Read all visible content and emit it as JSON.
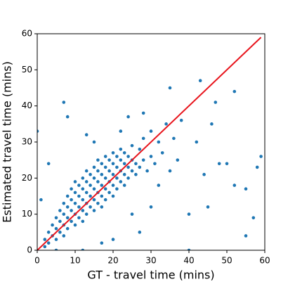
{
  "chart_data": {
    "type": "scatter",
    "xlabel": "GT - travel time (mins)",
    "ylabel": "Estimated travel time (mins)",
    "xlim": [
      0,
      60
    ],
    "ylim": [
      0,
      60
    ],
    "xticks": [
      0,
      10,
      20,
      30,
      40,
      50,
      60
    ],
    "yticks": [
      0,
      10,
      20,
      30,
      40,
      50,
      60
    ],
    "series": [
      {
        "type": "scatter",
        "color": "#1f77b4",
        "x": [
          2,
          3,
          3,
          4,
          4,
          5,
          5,
          5,
          6,
          6,
          6,
          7,
          7,
          7,
          7,
          8,
          8,
          8,
          8,
          9,
          9,
          9,
          9,
          10,
          10,
          10,
          10,
          10,
          11,
          11,
          11,
          11,
          12,
          12,
          12,
          12,
          12,
          13,
          13,
          13,
          13,
          13,
          14,
          14,
          14,
          14,
          15,
          15,
          15,
          15,
          15,
          16,
          16,
          16,
          16,
          16,
          17,
          17,
          17,
          17,
          17,
          18,
          18,
          18,
          18,
          18,
          19,
          19,
          19,
          19,
          20,
          20,
          20,
          20,
          20,
          21,
          21,
          21,
          21,
          22,
          22,
          22,
          22,
          23,
          23,
          23,
          23,
          24,
          24,
          24,
          25,
          25,
          25,
          26,
          26,
          27,
          27,
          28,
          28,
          29,
          30,
          30,
          31,
          32,
          33,
          34,
          35,
          36,
          7,
          8,
          3,
          0,
          1,
          2,
          5,
          15,
          13,
          17,
          20,
          25,
          27,
          30,
          32,
          37,
          40,
          42,
          43,
          45,
          46,
          48,
          50,
          52,
          52,
          55,
          55,
          57,
          59,
          58,
          47,
          35,
          44,
          38,
          40,
          12,
          22,
          24,
          28
        ],
        "values": [
          3,
          2,
          5,
          4,
          7,
          3,
          6,
          9,
          5,
          8,
          11,
          4,
          7,
          10,
          13,
          6,
          9,
          12,
          15,
          8,
          11,
          14,
          17,
          7,
          10,
          13,
          16,
          19,
          9,
          12,
          15,
          18,
          8,
          11,
          14,
          17,
          20,
          10,
          13,
          16,
          19,
          22,
          12,
          15,
          18,
          21,
          11,
          14,
          17,
          20,
          23,
          13,
          16,
          19,
          22,
          25,
          12,
          15,
          18,
          21,
          24,
          14,
          17,
          20,
          23,
          26,
          16,
          19,
          22,
          25,
          15,
          18,
          21,
          24,
          27,
          17,
          20,
          23,
          26,
          19,
          22,
          25,
          28,
          18,
          21,
          24,
          27,
          20,
          23,
          26,
          22,
          25,
          29,
          21,
          24,
          23,
          28,
          25,
          31,
          22,
          26,
          33,
          24,
          30,
          27,
          35,
          22,
          31,
          41,
          37,
          24,
          33,
          14,
          1,
          0,
          30,
          32,
          2,
          3,
          10,
          5,
          12,
          18,
          25,
          10,
          30,
          47,
          12,
          35,
          24,
          24,
          44,
          18,
          4,
          17,
          9,
          26,
          23,
          41,
          45,
          21,
          36,
          0,
          0,
          33,
          37,
          38
        ]
      },
      {
        "type": "line",
        "color": "#e8141c",
        "x": [
          0,
          59
        ],
        "values": [
          0,
          59
        ]
      }
    ]
  }
}
